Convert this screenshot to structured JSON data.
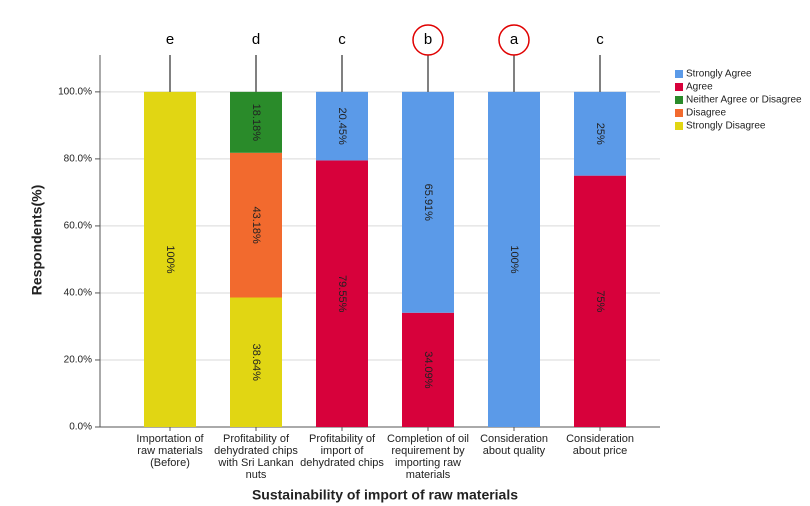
{
  "chart_data": {
    "type": "stacked-bar",
    "x_label": "Sustainability of import of raw materials",
    "y_label": "Respondents(%)",
    "categories": [
      "Importation of raw materials (Before)",
      "Profitability of dehydrated chips with Sri Lankan nuts",
      "Profitability of import of dehydrated chips",
      "Completion of oil requirement by importing raw materials",
      "Consideration about quality",
      "Consideration about price"
    ],
    "annotations": [
      "e",
      "d",
      "c",
      "b",
      "a",
      "c"
    ],
    "circled": [
      false,
      false,
      false,
      true,
      true,
      false
    ],
    "series": [
      {
        "name": "Strongly Agree",
        "color": "#5b9ae8",
        "values": [
          null,
          null,
          20.45,
          65.91,
          100,
          25
        ],
        "value_labels": [
          null,
          null,
          "20.45%",
          "65.91%",
          "100%",
          "25%"
        ]
      },
      {
        "name": "Agree",
        "color": "#d7013b",
        "values": [
          null,
          null,
          79.55,
          34.09,
          null,
          75
        ],
        "value_labels": [
          null,
          null,
          "79.55%",
          "34.09%",
          null,
          "75%"
        ]
      },
      {
        "name": "Neither Agree or Disagree",
        "color": "#2a8b2a",
        "values": [
          null,
          18.18,
          null,
          null,
          null,
          null
        ],
        "value_labels": [
          null,
          "18.18%",
          null,
          null,
          null,
          null
        ]
      },
      {
        "name": "Disagree",
        "color": "#f26a2e",
        "values": [
          null,
          43.18,
          null,
          null,
          null,
          null
        ],
        "value_labels": [
          null,
          "43.18%",
          null,
          null,
          null,
          null
        ]
      },
      {
        "name": "Strongly Disagree",
        "color": "#e1d613",
        "values": [
          100,
          38.64,
          null,
          null,
          null,
          null
        ],
        "value_labels": [
          "100%",
          "38.64%",
          null,
          null,
          null,
          null
        ]
      }
    ],
    "ylim": [
      0,
      111
    ],
    "yticks": [
      {
        "value": 0,
        "label": "0.0%"
      },
      {
        "value": 20,
        "label": "20.0%"
      },
      {
        "value": 40,
        "label": "40.0%"
      },
      {
        "value": 60,
        "label": "60.0%"
      },
      {
        "value": 80,
        "label": "80.0%"
      },
      {
        "value": 100,
        "label": "100.0%"
      }
    ],
    "grid": true,
    "legend": "top-right"
  }
}
